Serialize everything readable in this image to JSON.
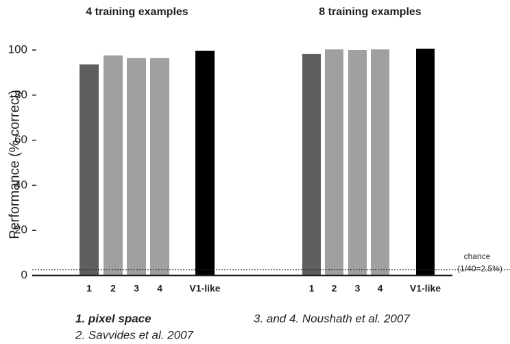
{
  "chart_data": {
    "type": "bar",
    "ylabel": "Performance (% correct)",
    "ylim": [
      0,
      100
    ],
    "yticks": [
      0,
      20,
      40,
      60,
      80,
      100
    ],
    "chance_line": 2.5,
    "annotations": [
      "chance",
      "(1/40=2.5%)"
    ],
    "panels": [
      {
        "title": "4 training examples",
        "categories": [
          "1",
          "2",
          "3",
          "4",
          "V1-like"
        ],
        "values": [
          93.6,
          97.6,
          96.4,
          96.4,
          99.7
        ],
        "colors": [
          "#5f5f61",
          "#a0a0a3",
          "#a0a0a3",
          "#a0a0a3",
          "#000000"
        ]
      },
      {
        "title": "8 training examples",
        "categories": [
          "1",
          "2",
          "3",
          "4",
          "V1-like"
        ],
        "values": [
          98.2,
          100.3,
          100.0,
          100.3,
          100.6
        ],
        "colors": [
          "#5f5f61",
          "#a0a0a3",
          "#a0a0a3",
          "#a0a0a3",
          "#000000"
        ]
      }
    ],
    "notes": [
      "1. pixel space",
      "2. Savvides et al. 2007",
      "3. and 4. Noushath et al. 2007"
    ]
  }
}
